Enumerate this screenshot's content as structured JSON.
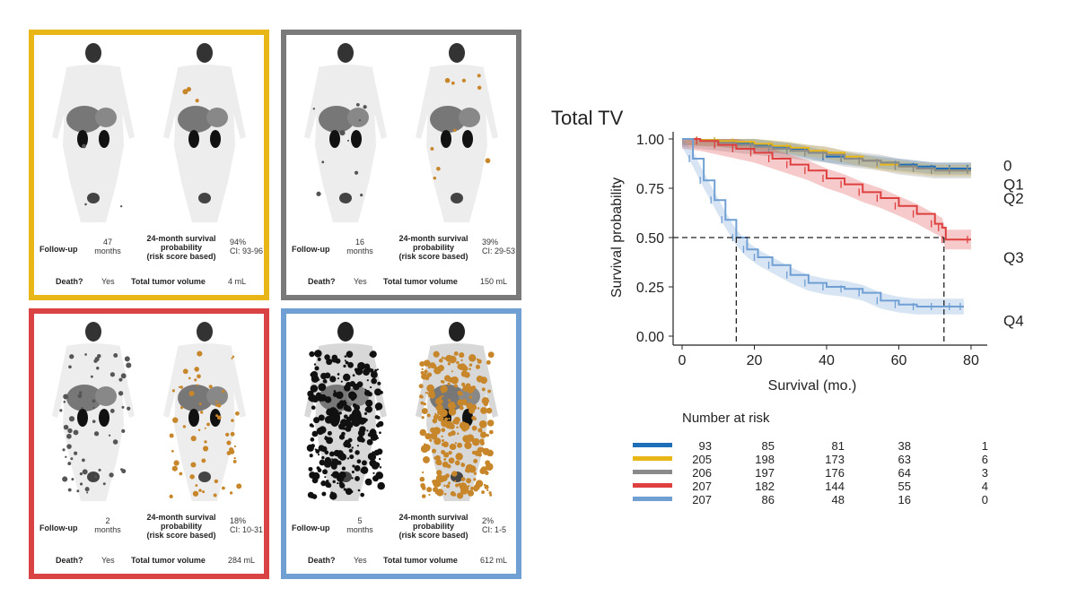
{
  "panels": [
    {
      "id": "q1",
      "border": "#e9b618",
      "follow_up_label": "Follow-up",
      "follow_up_value": "47",
      "follow_up_unit": "months",
      "survival_label_1": "24-month survival",
      "survival_label_2": "probability",
      "survival_label_3": "(risk score based)",
      "survival_value": "94%",
      "survival_ci": "CI: 93-96",
      "death_label": "Death?",
      "death_value": "Yes",
      "tv_label": "Total tumor volume",
      "tv_value": "4 mL",
      "uptake": "minimal"
    },
    {
      "id": "q2",
      "border": "#7a7a7a",
      "follow_up_label": "Follow-up",
      "follow_up_value": "16",
      "follow_up_unit": "months",
      "survival_label_1": "24-month survival",
      "survival_label_2": "probability",
      "survival_label_3": "(risk score based)",
      "survival_value": "39%",
      "survival_ci": "CI: 29-53",
      "death_label": "Death?",
      "death_value": "Yes",
      "tv_label": "Total tumor volume",
      "tv_value": "150 mL",
      "uptake": "low"
    },
    {
      "id": "q3",
      "border": "#d94343",
      "follow_up_label": "Follow-up",
      "follow_up_value": "2",
      "follow_up_unit": "months",
      "survival_label_1": "24-month survival",
      "survival_label_2": "probability",
      "survival_label_3": "(risk score based)",
      "survival_value": "18%",
      "survival_ci": "CI: 10-31",
      "death_label": "Death?",
      "death_value": "Yes",
      "tv_label": "Total tumor volume",
      "tv_value": "284 mL",
      "uptake": "moderate"
    },
    {
      "id": "q4",
      "border": "#6f9fd3",
      "follow_up_label": "Follow-up",
      "follow_up_value": "5",
      "follow_up_unit": "months",
      "survival_label_1": "24-month survival",
      "survival_label_2": "probability",
      "survival_label_3": "(risk score based)",
      "survival_value": "2%",
      "survival_ci": "CI: 1-5",
      "death_label": "Death?",
      "death_value": "Yes",
      "tv_label": "Total tumor volume",
      "tv_value": "612 mL",
      "uptake": "extensive"
    }
  ],
  "chart_data": {
    "type": "line",
    "title": "Total TV",
    "xlabel": "Survival (mo.)",
    "ylabel": "Survival probability",
    "xlim": [
      0,
      82
    ],
    "ylim": [
      0,
      1.0
    ],
    "xticks": [
      0,
      20,
      40,
      60,
      80
    ],
    "yticks": [
      "0.00",
      "0.25",
      "0.50",
      "0.75",
      "1.00"
    ],
    "grid": false,
    "median_lines": [
      {
        "x": 15,
        "y": 0.5
      },
      {
        "x": 72.5,
        "y": 0.5
      }
    ],
    "series": [
      {
        "name": "0",
        "color": "#1f6fb8",
        "end_label_y": 0.865,
        "x": [
          0,
          5,
          10,
          15,
          20,
          25,
          30,
          35,
          40,
          45,
          50,
          55,
          60,
          65,
          70,
          75,
          80
        ],
        "y": [
          1.0,
          0.995,
          0.99,
          0.98,
          0.97,
          0.96,
          0.95,
          0.93,
          0.91,
          0.9,
          0.89,
          0.88,
          0.87,
          0.86,
          0.85,
          0.85,
          0.85
        ],
        "band": 0.03
      },
      {
        "name": "Q1",
        "color": "#e9b618",
        "end_label_y": 0.77,
        "x": [
          0,
          5,
          10,
          15,
          20,
          25,
          30,
          35,
          40,
          45,
          50,
          55,
          60,
          65,
          70,
          75,
          80
        ],
        "y": [
          1.0,
          0.995,
          0.99,
          0.985,
          0.975,
          0.965,
          0.955,
          0.94,
          0.93,
          0.91,
          0.89,
          0.87,
          0.86,
          0.85,
          0.84,
          0.84,
          0.84
        ],
        "band": 0.03
      },
      {
        "name": "Q2",
        "color": "#8a8a8a",
        "end_label_y": 0.7,
        "x": [
          0,
          5,
          10,
          15,
          20,
          25,
          30,
          35,
          40,
          45,
          50,
          55,
          60,
          65,
          70,
          75,
          80
        ],
        "y": [
          1.0,
          0.99,
          0.98,
          0.97,
          0.96,
          0.95,
          0.94,
          0.93,
          0.92,
          0.9,
          0.89,
          0.88,
          0.86,
          0.85,
          0.84,
          0.84,
          0.84
        ],
        "band": 0.04
      },
      {
        "name": "Q3",
        "color": "#de4040",
        "end_label_y": 0.4,
        "x": [
          0,
          5,
          10,
          15,
          20,
          25,
          30,
          35,
          40,
          45,
          50,
          55,
          60,
          65,
          70,
          72,
          73,
          80
        ],
        "y": [
          1.0,
          0.99,
          0.97,
          0.95,
          0.93,
          0.9,
          0.87,
          0.84,
          0.8,
          0.77,
          0.73,
          0.7,
          0.66,
          0.62,
          0.57,
          0.55,
          0.49,
          0.49
        ],
        "band": 0.05
      },
      {
        "name": "Q4",
        "color": "#6f9fd3",
        "end_label_y": 0.08,
        "x": [
          0,
          3,
          6,
          9,
          12,
          15,
          18,
          21,
          25,
          30,
          35,
          40,
          45,
          50,
          55,
          60,
          65,
          70,
          75,
          78
        ],
        "y": [
          1.0,
          0.9,
          0.79,
          0.69,
          0.59,
          0.5,
          0.44,
          0.4,
          0.36,
          0.31,
          0.27,
          0.25,
          0.24,
          0.22,
          0.18,
          0.16,
          0.15,
          0.15,
          0.15,
          0.15
        ],
        "band": 0.04
      }
    ]
  },
  "risk_table": {
    "title": "Number at risk",
    "rows": [
      {
        "color": "#1f6fb8",
        "counts": [
          "93",
          "85",
          "81",
          "38",
          "1"
        ]
      },
      {
        "color": "#e9b618",
        "counts": [
          "205",
          "198",
          "173",
          "63",
          "6"
        ]
      },
      {
        "color": "#8a8a8a",
        "counts": [
          "206",
          "197",
          "176",
          "64",
          "3"
        ]
      },
      {
        "color": "#de4040",
        "counts": [
          "207",
          "182",
          "144",
          "55",
          "4"
        ]
      },
      {
        "color": "#6f9fd3",
        "counts": [
          "207",
          "86",
          "48",
          "16",
          "0"
        ]
      }
    ]
  }
}
